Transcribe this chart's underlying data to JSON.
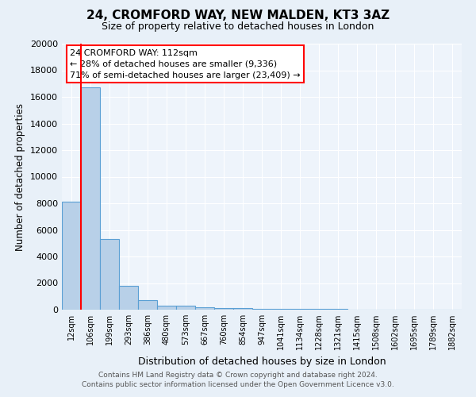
{
  "title1": "24, CROMFORD WAY, NEW MALDEN, KT3 3AZ",
  "title2": "Size of property relative to detached houses in London",
  "xlabel": "Distribution of detached houses by size in London",
  "ylabel": "Number of detached properties",
  "categories": [
    "12sqm",
    "106sqm",
    "199sqm",
    "293sqm",
    "386sqm",
    "480sqm",
    "573sqm",
    "667sqm",
    "760sqm",
    "854sqm",
    "947sqm",
    "1041sqm",
    "1134sqm",
    "1228sqm",
    "1321sqm",
    "1415sqm",
    "1508sqm",
    "1602sqm",
    "1695sqm",
    "1789sqm",
    "1882sqm"
  ],
  "values": [
    8100,
    16700,
    5300,
    1800,
    700,
    310,
    270,
    200,
    130,
    100,
    80,
    60,
    50,
    40,
    30,
    25,
    20,
    15,
    12,
    10,
    8
  ],
  "bar_color": "#b8d0e8",
  "bar_edge_color": "#5a9fd4",
  "red_line_index": 1,
  "annotation_title": "24 CROMFORD WAY: 112sqm",
  "annotation_line1": "← 28% of detached houses are smaller (9,336)",
  "annotation_line2": "71% of semi-detached houses are larger (23,409) →",
  "footer1": "Contains HM Land Registry data © Crown copyright and database right 2024.",
  "footer2": "Contains public sector information licensed under the Open Government Licence v3.0.",
  "ylim": [
    0,
    20000
  ],
  "yticks": [
    0,
    2000,
    4000,
    6000,
    8000,
    10000,
    12000,
    14000,
    16000,
    18000,
    20000
  ],
  "bg_color": "#e8f0f8",
  "plot_bg": "#eef4fb"
}
